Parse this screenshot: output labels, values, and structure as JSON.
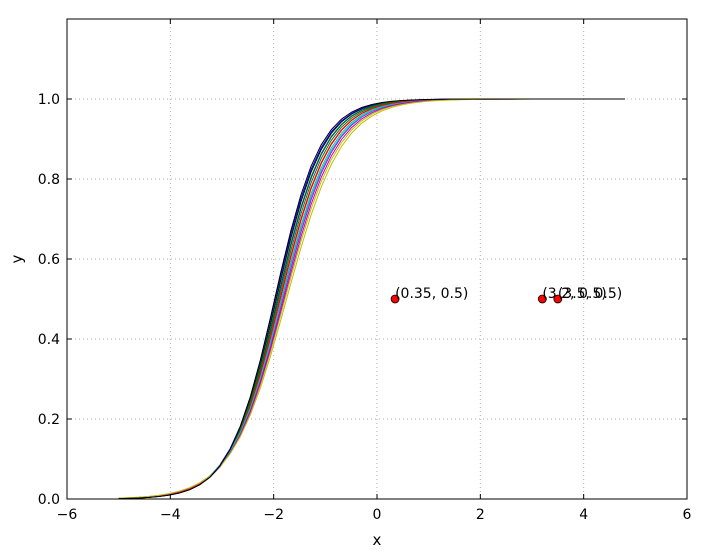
{
  "chart_data": {
    "type": "line",
    "title": "",
    "xlabel": "x",
    "ylabel": "y",
    "xlim": [
      -6,
      6
    ],
    "ylim": [
      0,
      1.2
    ],
    "grid": true,
    "x_ticks": [
      -6,
      -4,
      -2,
      0,
      2,
      4,
      6
    ],
    "y_ticks": [
      0.0,
      0.2,
      0.4,
      0.6,
      0.8,
      1.0
    ],
    "x_tick_labels": [
      "−6",
      "−4",
      "−2",
      "0",
      "2",
      "4",
      "6"
    ],
    "y_tick_labels": [
      "0.0",
      "0.2",
      "0.4",
      "0.6",
      "0.8",
      "1.0"
    ],
    "x_range": [
      -5,
      4.8
    ],
    "series": [
      {
        "color": "#0000ff",
        "center": -1.92,
        "scale": 0.46
      },
      {
        "color": "#008000",
        "center": -1.9,
        "scale": 0.47
      },
      {
        "color": "#ff0000",
        "center": -1.87,
        "scale": 0.48
      },
      {
        "color": "#00bfbf",
        "center": -1.85,
        "scale": 0.49
      },
      {
        "color": "#bf00bf",
        "center": -1.82,
        "scale": 0.5
      },
      {
        "color": "#bfbf00",
        "center": -1.78,
        "scale": 0.52
      },
      {
        "color": "#000000",
        "center": -1.95,
        "scale": 0.45
      },
      {
        "color": "#0000ff",
        "center": -1.97,
        "scale": 0.45
      },
      {
        "color": "#008000",
        "center": -1.93,
        "scale": 0.46
      },
      {
        "color": "#ff0000",
        "center": -1.88,
        "scale": 0.48
      },
      {
        "color": "#00bfbf",
        "center": -1.84,
        "scale": 0.5
      },
      {
        "color": "#bf00bf",
        "center": -1.8,
        "scale": 0.51
      },
      {
        "color": "#bfbf00",
        "center": -1.75,
        "scale": 0.53
      },
      {
        "color": "#000000",
        "center": -1.98,
        "scale": 0.44
      }
    ],
    "points": [
      {
        "x": 0.35,
        "y": 0.5,
        "label": "(0.35, 0.5)"
      },
      {
        "x": 3.2,
        "y": 0.5,
        "label": "(3.2, 0.5)"
      },
      {
        "x": 3.5,
        "y": 0.5,
        "label": "(3.5, 0.5)"
      }
    ],
    "point_color": "#ff0000"
  }
}
